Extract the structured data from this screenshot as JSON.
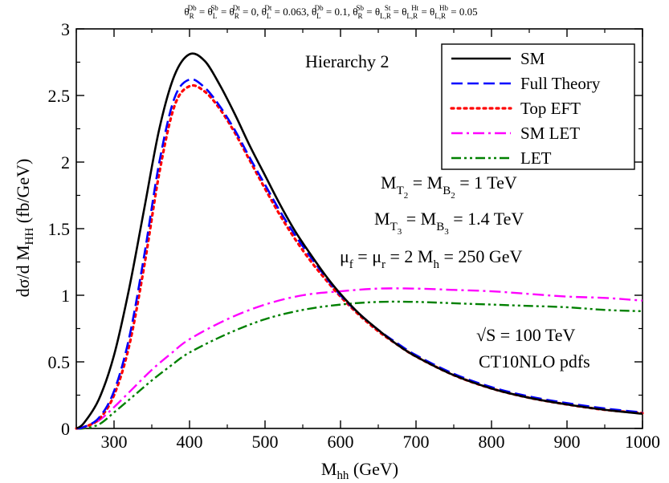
{
  "chart_data": {
    "type": "line",
    "title_parts": [
      "θ",
      "R",
      "Db",
      " = θ",
      "L",
      "Sb",
      " = θ",
      "R",
      "Dt",
      " = 0, θ",
      "L",
      "Dt",
      " = 0.063, θ",
      "L",
      "Db",
      " = 0.1, θ",
      "R",
      "Sb",
      " = θ",
      "L,R",
      "St",
      " = θ",
      "L,R",
      "Ht",
      " = θ",
      "L,R",
      "Hb",
      " = 0.05"
    ],
    "xlabel_main": "M",
    "xlabel_sub": "hh",
    "xlabel_unit": " (GeV)",
    "ylabel_main": "dσ/d M",
    "ylabel_sub": "HH",
    "ylabel_unit": " (fb/GeV)",
    "xlim": [
      250,
      1000
    ],
    "ylim": [
      0,
      3
    ],
    "x_ticks": [
      300,
      400,
      500,
      600,
      700,
      800,
      900,
      1000
    ],
    "y_ticks": [
      0,
      0.5,
      1,
      1.5,
      2,
      2.5,
      3
    ],
    "y_tick_labels": [
      "0",
      "0.5",
      "1",
      "1.5",
      "2",
      "2.5",
      "3"
    ],
    "hierarchy_label": "Hierarchy 2",
    "annotations": {
      "mass_line1": {
        "parts": [
          "M",
          "T",
          "2",
          " = M",
          "B",
          "2",
          " = 1 TeV"
        ]
      },
      "mass_line2": {
        "parts": [
          "M",
          "T",
          "3",
          " = M",
          "B",
          "3",
          " = 1.4 TeV"
        ]
      },
      "scale_line": {
        "parts": [
          "μ",
          "f",
          " = μ",
          "r",
          " = 2 M",
          "h",
          " = 250 GeV"
        ]
      },
      "energy_line": "√S = 100 TeV",
      "pdf_line": "CT10NLO pdfs"
    },
    "legend_position": "top-right",
    "series": [
      {
        "name": "SM",
        "color": "#000000",
        "style": "solid",
        "x": [
          250,
          260,
          280,
          300,
          320,
          340,
          360,
          380,
          400,
          420,
          440,
          460,
          480,
          500,
          520,
          540,
          560,
          580,
          600,
          625,
          650,
          675,
          700,
          750,
          800,
          850,
          900,
          950,
          1000
        ],
        "y": [
          0,
          0.04,
          0.22,
          0.55,
          1.05,
          1.65,
          2.25,
          2.65,
          2.81,
          2.76,
          2.58,
          2.36,
          2.12,
          1.9,
          1.68,
          1.48,
          1.31,
          1.15,
          1.01,
          0.86,
          0.74,
          0.63,
          0.54,
          0.4,
          0.3,
          0.23,
          0.18,
          0.14,
          0.11
        ]
      },
      {
        "name": "Full Theory",
        "color": "#0000ff",
        "style": "dashed",
        "x": [
          250,
          260,
          280,
          300,
          320,
          340,
          360,
          380,
          400,
          420,
          440,
          460,
          480,
          500,
          520,
          540,
          560,
          580,
          600,
          625,
          650,
          675,
          700,
          750,
          800,
          850,
          900,
          950,
          1000
        ],
        "y": [
          0,
          0.01,
          0.08,
          0.28,
          0.68,
          1.3,
          2.0,
          2.48,
          2.62,
          2.56,
          2.42,
          2.24,
          2.03,
          1.83,
          1.63,
          1.45,
          1.29,
          1.14,
          1.0,
          0.86,
          0.74,
          0.64,
          0.55,
          0.41,
          0.31,
          0.24,
          0.19,
          0.15,
          0.12
        ]
      },
      {
        "name": "Top EFT",
        "color": "#ff0000",
        "style": "dotted",
        "x": [
          250,
          260,
          280,
          300,
          320,
          340,
          360,
          380,
          400,
          420,
          440,
          460,
          480,
          500,
          520,
          540,
          560,
          580,
          600,
          625,
          650,
          675,
          700,
          750,
          800,
          850,
          900,
          950,
          1000
        ],
        "y": [
          0,
          0.01,
          0.07,
          0.25,
          0.62,
          1.22,
          1.92,
          2.42,
          2.57,
          2.53,
          2.4,
          2.22,
          2.01,
          1.8,
          1.6,
          1.42,
          1.26,
          1.12,
          0.99,
          0.85,
          0.73,
          0.63,
          0.54,
          0.4,
          0.3,
          0.23,
          0.18,
          0.14,
          0.115
        ]
      },
      {
        "name": "SM LET",
        "color": "#ff00ff",
        "style": "dashdot",
        "x": [
          250,
          260,
          280,
          300,
          325,
          350,
          375,
          400,
          450,
          500,
          550,
          600,
          650,
          700,
          750,
          800,
          850,
          900,
          950,
          1000
        ],
        "y": [
          0,
          0.01,
          0.06,
          0.16,
          0.3,
          0.44,
          0.56,
          0.67,
          0.82,
          0.93,
          1.0,
          1.03,
          1.05,
          1.05,
          1.04,
          1.03,
          1.01,
          0.99,
          0.98,
          0.96
        ]
      },
      {
        "name": "LET",
        "color": "#008000",
        "style": "dashdotdot",
        "x": [
          250,
          260,
          280,
          300,
          325,
          350,
          375,
          400,
          450,
          500,
          550,
          600,
          650,
          700,
          750,
          800,
          850,
          900,
          950,
          1000
        ],
        "y": [
          0,
          0.0,
          0.03,
          0.12,
          0.24,
          0.36,
          0.47,
          0.57,
          0.71,
          0.82,
          0.89,
          0.93,
          0.95,
          0.95,
          0.94,
          0.93,
          0.92,
          0.91,
          0.89,
          0.88
        ]
      }
    ]
  }
}
